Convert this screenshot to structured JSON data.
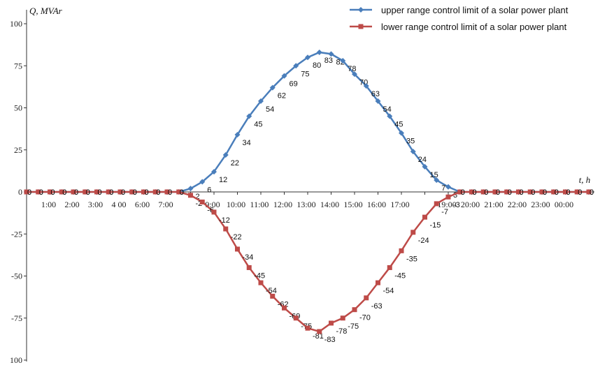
{
  "chart_data": {
    "type": "line",
    "ylabel": "Q, MVAr",
    "xlabel": "t, h",
    "y_ticks": [
      "100",
      "75",
      "50",
      "25",
      "0",
      "-25",
      "-50",
      "-75",
      "100"
    ],
    "x_ticks": [
      "1:00",
      "2:00",
      "3:00",
      "4 00",
      "6:00",
      "7:00",
      "9:00",
      "10:00",
      "11:00",
      "12:00",
      "13:00",
      "14:00",
      "15:00",
      "16:00",
      "17:00",
      "19:00",
      "20:00",
      "21:00",
      "22:00",
      "23:00",
      "00:00"
    ],
    "ylim": [
      -100,
      100
    ],
    "grid": false,
    "legend_position": "top-right",
    "series": [
      {
        "name": "upper range control limit of a solar power plant",
        "color": "#4a7ebb",
        "marker": "diamond",
        "values": [
          0,
          0,
          0,
          0,
          0,
          0,
          0,
          0,
          0,
          0,
          0,
          0,
          0,
          0,
          2,
          6,
          12,
          22,
          34,
          45,
          54,
          62,
          69,
          75,
          80,
          83,
          82,
          78,
          70,
          63,
          54,
          45,
          35,
          24,
          15,
          7,
          3,
          0,
          0,
          0,
          0,
          0,
          0,
          0,
          0,
          0,
          0,
          0,
          0
        ]
      },
      {
        "name": "lower range control limit of a solar power plant",
        "color": "#be4b48",
        "marker": "square",
        "values": [
          0,
          0,
          0,
          0,
          0,
          0,
          0,
          0,
          0,
          0,
          0,
          0,
          0,
          0,
          -2,
          -6,
          -12,
          -22,
          -34,
          -45,
          -54,
          -62,
          -69,
          -75,
          -81,
          -83,
          -78,
          -75,
          -70,
          -63,
          -54,
          -45,
          -35,
          -24,
          -15,
          -7,
          -3,
          0,
          0,
          0,
          0,
          0,
          0,
          0,
          0,
          0,
          0,
          0,
          0
        ]
      }
    ]
  }
}
